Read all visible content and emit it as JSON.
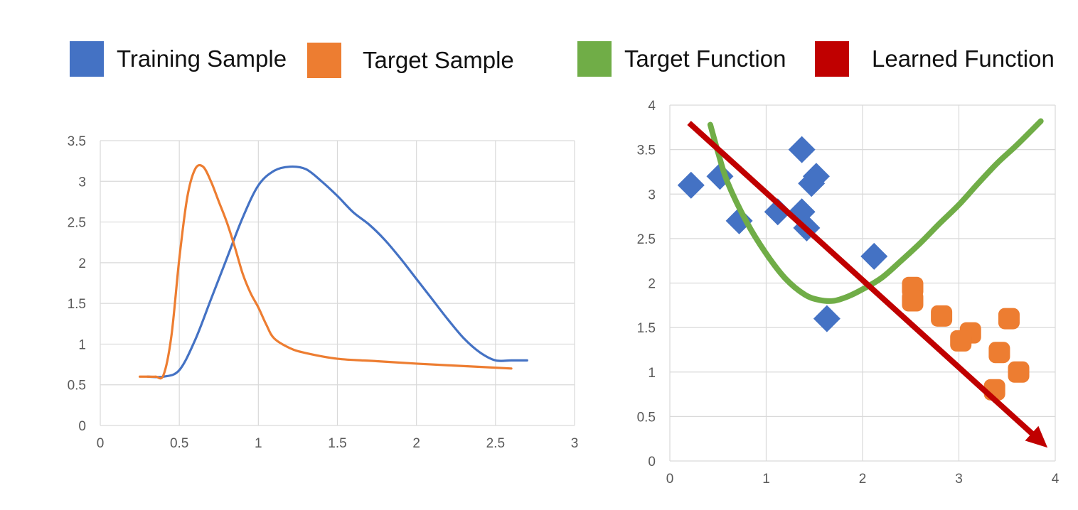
{
  "legend": {
    "items": [
      {
        "label": "Training Sample",
        "color": "#4472C4",
        "shape": "square"
      },
      {
        "label": "Target Sample",
        "color": "#ED7D31",
        "shape": "square"
      },
      {
        "label": "Target Function",
        "color": "#70AD47",
        "shape": "square"
      },
      {
        "label": "Learned Function",
        "color": "#C00000",
        "shape": "square"
      }
    ]
  },
  "chart_data": [
    {
      "type": "line",
      "title": "",
      "xlabel": "",
      "ylabel": "",
      "xlim": [
        0,
        3
      ],
      "ylim": [
        0,
        3.5
      ],
      "x_ticks": [
        "0",
        "0.5",
        "1",
        "1.5",
        "2",
        "2.5",
        "3"
      ],
      "y_ticks": [
        "0",
        "0.5",
        "1",
        "1.5",
        "2",
        "2.5",
        "3",
        "3.5"
      ],
      "grid": true,
      "series": [
        {
          "color": "#4472C4",
          "x": [
            0.3,
            0.4,
            0.5,
            0.6,
            0.7,
            0.8,
            0.9,
            1.0,
            1.1,
            1.2,
            1.3,
            1.4,
            1.5,
            1.6,
            1.7,
            1.8,
            1.9,
            2.0,
            2.1,
            2.2,
            2.3,
            2.4,
            2.5,
            2.6,
            2.7
          ],
          "y": [
            0.6,
            0.6,
            0.68,
            1.05,
            1.55,
            2.05,
            2.55,
            2.95,
            3.13,
            3.18,
            3.15,
            3.0,
            2.82,
            2.62,
            2.47,
            2.28,
            2.05,
            1.8,
            1.55,
            1.3,
            1.07,
            0.9,
            0.8,
            0.8,
            0.8
          ]
        },
        {
          "color": "#ED7D31",
          "x": [
            0.25,
            0.3,
            0.35,
            0.4,
            0.45,
            0.5,
            0.55,
            0.6,
            0.65,
            0.7,
            0.75,
            0.8,
            0.85,
            0.9,
            0.95,
            1.0,
            1.05,
            1.1,
            1.2,
            1.3,
            1.5,
            1.75,
            2.0,
            2.3,
            2.6
          ],
          "y": [
            0.6,
            0.6,
            0.6,
            0.62,
            1.1,
            2.05,
            2.8,
            3.15,
            3.18,
            3.0,
            2.75,
            2.5,
            2.2,
            1.87,
            1.63,
            1.45,
            1.24,
            1.07,
            0.95,
            0.89,
            0.82,
            0.79,
            0.76,
            0.73,
            0.7
          ]
        }
      ]
    },
    {
      "type": "scatter",
      "title": "",
      "xlabel": "",
      "ylabel": "",
      "xlim": [
        0,
        4
      ],
      "ylim": [
        0,
        4
      ],
      "x_ticks": [
        "0",
        "1",
        "2",
        "3",
        "4"
      ],
      "y_ticks": [
        "0",
        "0.5",
        "1",
        "1.5",
        "2",
        "2.5",
        "3",
        "3.5",
        "4"
      ],
      "grid": true,
      "series": [
        {
          "color": "#4472C4",
          "marker": "diamond",
          "points": [
            [
              0.22,
              3.1
            ],
            [
              0.52,
              3.2
            ],
            [
              0.72,
              2.7
            ],
            [
              1.12,
              2.8
            ],
            [
              1.37,
              3.5
            ],
            [
              1.37,
              2.8
            ],
            [
              1.42,
              2.62
            ],
            [
              1.52,
              3.2
            ],
            [
              1.47,
              3.12
            ],
            [
              2.12,
              2.3
            ],
            [
              1.63,
              1.6
            ]
          ]
        },
        {
          "color": "#ED7D31",
          "marker": "rounded-square",
          "points": [
            [
              2.52,
              1.95
            ],
            [
              2.52,
              1.8
            ],
            [
              2.82,
              1.63
            ],
            [
              3.12,
              1.44
            ],
            [
              3.02,
              1.35
            ],
            [
              3.42,
              1.22
            ],
            [
              3.52,
              1.6
            ],
            [
              3.62,
              1.0
            ],
            [
              3.37,
              0.8
            ]
          ]
        },
        {
          "color": "#70AD47",
          "type": "curve",
          "points": [
            [
              0.42,
              3.78
            ],
            [
              0.5,
              3.47
            ],
            [
              0.6,
              3.13
            ],
            [
              0.8,
              2.68
            ],
            [
              1.0,
              2.33
            ],
            [
              1.2,
              2.05
            ],
            [
              1.4,
              1.87
            ],
            [
              1.55,
              1.81
            ],
            [
              1.7,
              1.8
            ],
            [
              1.85,
              1.85
            ],
            [
              2.0,
              1.93
            ],
            [
              2.2,
              2.06
            ],
            [
              2.4,
              2.25
            ],
            [
              2.6,
              2.45
            ],
            [
              2.8,
              2.67
            ],
            [
              3.0,
              2.88
            ],
            [
              3.2,
              3.12
            ],
            [
              3.4,
              3.35
            ],
            [
              3.6,
              3.55
            ],
            [
              3.85,
              3.82
            ]
          ]
        },
        {
          "color": "#C00000",
          "type": "arrow",
          "points": [
            [
              0.2,
              3.8
            ],
            [
              3.92,
              0.15
            ]
          ]
        }
      ]
    }
  ]
}
